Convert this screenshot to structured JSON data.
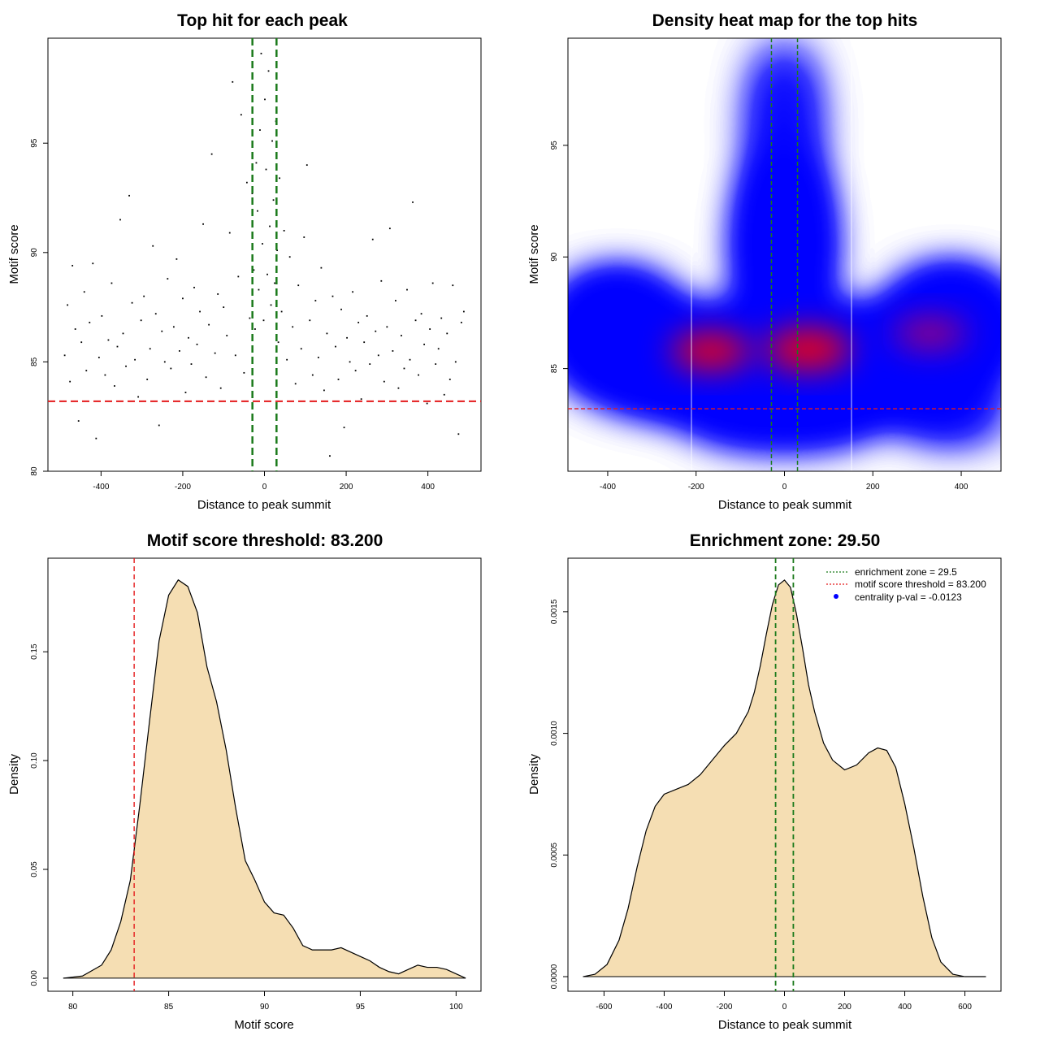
{
  "colors": {
    "threshold": "#e41a1c",
    "zone": "#1b7a1b",
    "density_fill": "#f5deb3",
    "heat_low": "#ffffff",
    "heat_mid": "#0000ff",
    "heat_high": "#ff0000",
    "centrality_point": "#0000ff"
  },
  "chart_data": [
    {
      "id": "scatter",
      "type": "scatter",
      "title": "Top hit for each peak",
      "xlabel": "Distance to peak summit",
      "ylabel": "Motif score",
      "xlim": [
        -530,
        530
      ],
      "ylim": [
        80,
        99.8
      ],
      "xticks": [
        -400,
        -200,
        0,
        200,
        400
      ],
      "yticks": [
        80,
        85,
        90,
        95
      ],
      "hline": 83.2,
      "vlines": [
        -29.5,
        29.5
      ],
      "grid": false,
      "points": [
        [
          -489,
          85.3
        ],
        [
          -482,
          87.6
        ],
        [
          -476,
          84.1
        ],
        [
          -470,
          89.4
        ],
        [
          -463,
          86.5
        ],
        [
          -455,
          82.3
        ],
        [
          -448,
          85.9
        ],
        [
          -441,
          88.2
        ],
        [
          -436,
          84.6
        ],
        [
          -428,
          86.8
        ],
        [
          -420,
          89.5
        ],
        [
          -412,
          81.5
        ],
        [
          -405,
          85.2
        ],
        [
          -398,
          87.1
        ],
        [
          -390,
          84.4
        ],
        [
          -382,
          86.0
        ],
        [
          -374,
          88.6
        ],
        [
          -367,
          83.9
        ],
        [
          -360,
          85.7
        ],
        [
          -353,
          91.5
        ],
        [
          -346,
          86.3
        ],
        [
          -339,
          84.8
        ],
        [
          -331,
          92.6
        ],
        [
          -324,
          87.7
        ],
        [
          -317,
          85.1
        ],
        [
          -309,
          83.4
        ],
        [
          -302,
          86.9
        ],
        [
          -295,
          88.0
        ],
        [
          -287,
          84.2
        ],
        [
          -280,
          85.6
        ],
        [
          -273,
          90.3
        ],
        [
          -266,
          87.2
        ],
        [
          -258,
          82.1
        ],
        [
          -251,
          86.4
        ],
        [
          -244,
          85.0
        ],
        [
          -237,
          88.8
        ],
        [
          -229,
          84.7
        ],
        [
          -222,
          86.6
        ],
        [
          -215,
          89.7
        ],
        [
          -208,
          85.5
        ],
        [
          -200,
          87.9
        ],
        [
          -193,
          83.6
        ],
        [
          -186,
          86.1
        ],
        [
          -179,
          84.9
        ],
        [
          -172,
          88.4
        ],
        [
          -165,
          85.8
        ],
        [
          -158,
          87.3
        ],
        [
          -150,
          91.3
        ],
        [
          -143,
          84.3
        ],
        [
          -136,
          86.7
        ],
        [
          -129,
          94.5
        ],
        [
          -121,
          85.4
        ],
        [
          -114,
          88.1
        ],
        [
          -107,
          83.8
        ],
        [
          -100,
          87.5
        ],
        [
          -92,
          86.2
        ],
        [
          -85,
          90.9
        ],
        [
          -78,
          97.8
        ],
        [
          -71,
          85.3
        ],
        [
          -64,
          88.9
        ],
        [
          -57,
          96.3
        ],
        [
          -50,
          84.5
        ],
        [
          -43,
          93.2
        ],
        [
          -36,
          87.0
        ],
        [
          -30,
          92.7
        ],
        [
          -26,
          89.2
        ],
        [
          -23,
          86.5
        ],
        [
          -20,
          94.1
        ],
        [
          -17,
          91.9
        ],
        [
          -14,
          88.3
        ],
        [
          -11,
          95.6
        ],
        [
          -8,
          99.1
        ],
        [
          -5,
          90.4
        ],
        [
          -2,
          86.9
        ],
        [
          1,
          97.0
        ],
        [
          4,
          93.8
        ],
        [
          7,
          89.0
        ],
        [
          10,
          98.3
        ],
        [
          13,
          91.2
        ],
        [
          16,
          87.6
        ],
        [
          19,
          95.1
        ],
        [
          22,
          92.4
        ],
        [
          25,
          88.6
        ],
        [
          28,
          96.0
        ],
        [
          31,
          90.1
        ],
        [
          34,
          85.9
        ],
        [
          37,
          93.4
        ],
        [
          42,
          87.3
        ],
        [
          48,
          91.0
        ],
        [
          55,
          85.1
        ],
        [
          62,
          89.8
        ],
        [
          69,
          86.6
        ],
        [
          76,
          84.0
        ],
        [
          83,
          88.5
        ],
        [
          90,
          85.6
        ],
        [
          97,
          90.7
        ],
        [
          104,
          94.0
        ],
        [
          111,
          86.9
        ],
        [
          118,
          84.4
        ],
        [
          125,
          87.8
        ],
        [
          132,
          85.2
        ],
        [
          139,
          89.3
        ],
        [
          146,
          83.7
        ],
        [
          153,
          86.3
        ],
        [
          160,
          80.7
        ],
        [
          167,
          88.0
        ],
        [
          174,
          85.7
        ],
        [
          181,
          84.2
        ],
        [
          188,
          87.4
        ],
        [
          195,
          82.0
        ],
        [
          202,
          86.1
        ],
        [
          209,
          85.0
        ],
        [
          216,
          88.2
        ],
        [
          223,
          84.6
        ],
        [
          230,
          86.8
        ],
        [
          237,
          83.3
        ],
        [
          244,
          85.9
        ],
        [
          251,
          87.1
        ],
        [
          258,
          84.9
        ],
        [
          265,
          90.6
        ],
        [
          272,
          86.4
        ],
        [
          279,
          85.3
        ],
        [
          286,
          88.7
        ],
        [
          293,
          84.1
        ],
        [
          300,
          86.6
        ],
        [
          307,
          91.1
        ],
        [
          314,
          85.5
        ],
        [
          321,
          87.8
        ],
        [
          328,
          83.8
        ],
        [
          335,
          86.2
        ],
        [
          342,
          84.7
        ],
        [
          349,
          88.3
        ],
        [
          356,
          85.1
        ],
        [
          363,
          92.3
        ],
        [
          370,
          86.9
        ],
        [
          377,
          84.4
        ],
        [
          384,
          87.2
        ],
        [
          391,
          85.8
        ],
        [
          398,
          83.1
        ],
        [
          405,
          86.5
        ],
        [
          412,
          88.6
        ],
        [
          419,
          84.9
        ],
        [
          426,
          85.6
        ],
        [
          433,
          87.0
        ],
        [
          440,
          83.5
        ],
        [
          447,
          86.3
        ],
        [
          454,
          84.2
        ],
        [
          461,
          88.5
        ],
        [
          468,
          85.0
        ],
        [
          475,
          81.7
        ],
        [
          482,
          86.8
        ],
        [
          488,
          87.3
        ]
      ]
    },
    {
      "id": "heatmap",
      "type": "heatmap",
      "title": "Density heat map for the top hits",
      "xlabel": "Distance to peak summit",
      "ylabel": "Motif score",
      "xlim": [
        -490,
        490
      ],
      "ylim": [
        80.4,
        99.8
      ],
      "xticks": [
        -400,
        -200,
        0,
        200,
        400
      ],
      "yticks": [
        85,
        90,
        95
      ],
      "hline": 83.2,
      "vlines": [
        -29.5,
        29.5
      ]
    },
    {
      "id": "score_density",
      "type": "area",
      "title": "Motif score threshold: 83.200",
      "xlabel": "Motif score",
      "ylabel": "Density",
      "xlim": [
        78.7,
        101.3
      ],
      "ylim": [
        -0.006,
        0.193
      ],
      "xticks": [
        80,
        85,
        90,
        95,
        100
      ],
      "yticks": [
        0.0,
        0.05,
        0.1,
        0.15
      ],
      "ytick_labels": [
        "0.00",
        "0.05",
        "0.10",
        "0.15"
      ],
      "vline": 83.2,
      "x": [
        79.5,
        80.5,
        81.5,
        82.0,
        82.5,
        83.0,
        83.5,
        84.0,
        84.5,
        85.0,
        85.5,
        86.0,
        86.5,
        87.0,
        87.5,
        88.0,
        88.5,
        89.0,
        89.5,
        90.0,
        90.5,
        91.0,
        91.5,
        92.0,
        92.5,
        93.0,
        93.5,
        94.0,
        94.5,
        95.0,
        95.5,
        96.0,
        96.5,
        97.0,
        97.5,
        98.0,
        98.5,
        99.0,
        99.5,
        100.0,
        100.5
      ],
      "y": [
        0.0,
        0.001,
        0.006,
        0.013,
        0.026,
        0.045,
        0.08,
        0.118,
        0.155,
        0.176,
        0.183,
        0.18,
        0.168,
        0.143,
        0.127,
        0.105,
        0.078,
        0.054,
        0.045,
        0.035,
        0.03,
        0.029,
        0.023,
        0.015,
        0.013,
        0.013,
        0.013,
        0.014,
        0.012,
        0.01,
        0.008,
        0.005,
        0.003,
        0.002,
        0.004,
        0.006,
        0.005,
        0.005,
        0.004,
        0.002,
        0.0
      ]
    },
    {
      "id": "distance_density",
      "type": "area",
      "title": "Enrichment zone: 29.50",
      "xlabel": "Distance to peak summit",
      "ylabel": "Density",
      "xlim": [
        -720,
        720
      ],
      "ylim": [
        -6e-05,
        0.00172
      ],
      "xticks": [
        -600,
        -400,
        -200,
        0,
        200,
        400,
        600
      ],
      "yticks": [
        0.0,
        0.0005,
        0.001,
        0.0015
      ],
      "ytick_labels": [
        "0.0000",
        "0.0005",
        "0.0010",
        "0.0015"
      ],
      "vlines": [
        -29.5,
        29.5
      ],
      "legend_position": "top-right",
      "legend": [
        {
          "label": "enrichment zone = 29.5",
          "style": "dotted-line",
          "color": "#1b7a1b"
        },
        {
          "label": "motif score threshold = 83.200",
          "style": "dotted-line",
          "color": "#e41a1c"
        },
        {
          "label": "centrality p-val = -0.0123",
          "style": "point",
          "color": "#0000ff"
        }
      ],
      "x": [
        -670,
        -630,
        -590,
        -550,
        -520,
        -490,
        -460,
        -430,
        -400,
        -360,
        -320,
        -280,
        -240,
        -200,
        -160,
        -120,
        -100,
        -80,
        -60,
        -40,
        -20,
        0,
        20,
        40,
        60,
        80,
        100,
        130,
        160,
        200,
        240,
        280,
        310,
        340,
        370,
        400,
        430,
        460,
        490,
        520,
        560,
        600,
        640,
        670
      ],
      "y": [
        0.0,
        1e-05,
        5e-05,
        0.00015,
        0.00028,
        0.00045,
        0.0006,
        0.0007,
        0.00075,
        0.00077,
        0.00079,
        0.00083,
        0.00089,
        0.00095,
        0.001,
        0.00109,
        0.00117,
        0.00128,
        0.00141,
        0.00153,
        0.00161,
        0.00163,
        0.0016,
        0.00149,
        0.00135,
        0.0012,
        0.00109,
        0.00096,
        0.00089,
        0.00085,
        0.00087,
        0.00092,
        0.00094,
        0.00093,
        0.00086,
        0.00071,
        0.00053,
        0.00033,
        0.00016,
        6e-05,
        1e-05,
        0.0,
        0.0,
        0.0
      ]
    }
  ]
}
